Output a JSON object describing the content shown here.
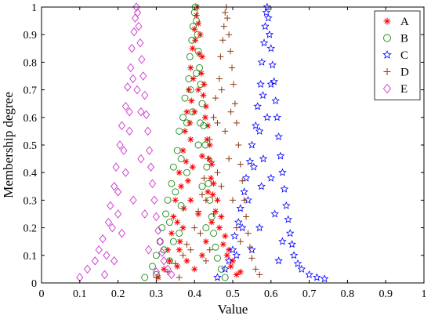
{
  "chart_data": {
    "type": "scatter",
    "title": "",
    "xlabel": "Value",
    "ylabel": "Membership degree",
    "xlim": [
      0,
      1
    ],
    "ylim": [
      0,
      1
    ],
    "xticks": [
      "0",
      "0.1",
      "0.2",
      "0.3",
      "0.4",
      "0.5",
      "0.6",
      "0.7",
      "0.8",
      "0.9",
      "1"
    ],
    "yticks": [
      "0",
      "0.1",
      "0.2",
      "0.3",
      "0.4",
      "0.5",
      "0.6",
      "0.7",
      "0.8",
      "0.9",
      "1"
    ],
    "grid": false,
    "legend_position": "top-right",
    "series": [
      {
        "name": "A",
        "marker": "asterisk",
        "color": "#ff0000",
        "points": [
          [
            0.305,
            0.02
          ],
          [
            0.32,
            0.05
          ],
          [
            0.33,
            0.12
          ],
          [
            0.335,
            0.08
          ],
          [
            0.34,
            0.18
          ],
          [
            0.345,
            0.24
          ],
          [
            0.35,
            0.3
          ],
          [
            0.355,
            0.22
          ],
          [
            0.36,
            0.4
          ],
          [
            0.362,
            0.15
          ],
          [
            0.365,
            0.35
          ],
          [
            0.37,
            0.48
          ],
          [
            0.372,
            0.27
          ],
          [
            0.375,
            0.55
          ],
          [
            0.378,
            0.44
          ],
          [
            0.38,
            0.62
          ],
          [
            0.383,
            0.37
          ],
          [
            0.385,
            0.7
          ],
          [
            0.388,
            0.58
          ],
          [
            0.39,
            0.78
          ],
          [
            0.392,
            0.66
          ],
          [
            0.395,
            0.85
          ],
          [
            0.397,
            0.74
          ],
          [
            0.4,
            0.92
          ],
          [
            0.402,
            0.88
          ],
          [
            0.405,
            0.97
          ],
          [
            0.407,
            1.0
          ],
          [
            0.41,
            0.94
          ],
          [
            0.412,
            0.83
          ],
          [
            0.415,
            0.9
          ],
          [
            0.418,
            0.76
          ],
          [
            0.42,
            0.82
          ],
          [
            0.423,
            0.68
          ],
          [
            0.425,
            0.72
          ],
          [
            0.428,
            0.6
          ],
          [
            0.43,
            0.64
          ],
          [
            0.433,
            0.52
          ],
          [
            0.435,
            0.57
          ],
          [
            0.438,
            0.45
          ],
          [
            0.44,
            0.5
          ],
          [
            0.443,
            0.38
          ],
          [
            0.445,
            0.43
          ],
          [
            0.448,
            0.32
          ],
          [
            0.45,
            0.36
          ],
          [
            0.455,
            0.26
          ],
          [
            0.46,
            0.3
          ],
          [
            0.465,
            0.2
          ],
          [
            0.47,
            0.24
          ],
          [
            0.475,
            0.14
          ],
          [
            0.48,
            0.17
          ],
          [
            0.485,
            0.1
          ],
          [
            0.49,
            0.12
          ],
          [
            0.495,
            0.06
          ],
          [
            0.5,
            0.08
          ],
          [
            0.51,
            0.03
          ],
          [
            0.52,
            0.04
          ],
          [
            0.36,
            0.12
          ],
          [
            0.37,
            0.2
          ],
          [
            0.39,
            0.3
          ],
          [
            0.41,
            0.25
          ],
          [
            0.43,
            0.15
          ],
          [
            0.38,
            0.08
          ],
          [
            0.4,
            0.05
          ],
          [
            0.42,
            0.1
          ],
          [
            0.355,
            0.06
          ],
          [
            0.445,
            0.22
          ],
          [
            0.39,
            0.52
          ],
          [
            0.42,
            0.46
          ],
          [
            0.4,
            0.62
          ],
          [
            0.41,
            0.7
          ],
          [
            0.395,
            0.42
          ],
          [
            0.435,
            0.33
          ]
        ]
      },
      {
        "name": "B",
        "marker": "circle",
        "color": "#1a8a1a",
        "points": [
          [
            0.27,
            0.02
          ],
          [
            0.29,
            0.06
          ],
          [
            0.3,
            0.1
          ],
          [
            0.31,
            0.15
          ],
          [
            0.315,
            0.2
          ],
          [
            0.32,
            0.12
          ],
          [
            0.325,
            0.25
          ],
          [
            0.33,
            0.3
          ],
          [
            0.335,
            0.22
          ],
          [
            0.34,
            0.36
          ],
          [
            0.345,
            0.42
          ],
          [
            0.35,
            0.33
          ],
          [
            0.355,
            0.48
          ],
          [
            0.36,
            0.55
          ],
          [
            0.365,
            0.45
          ],
          [
            0.37,
            0.6
          ],
          [
            0.375,
            0.67
          ],
          [
            0.38,
            0.58
          ],
          [
            0.385,
            0.74
          ],
          [
            0.388,
            0.82
          ],
          [
            0.39,
            0.7
          ],
          [
            0.393,
            0.88
          ],
          [
            0.396,
            0.93
          ],
          [
            0.4,
            0.98
          ],
          [
            0.402,
            1.0
          ],
          [
            0.405,
            0.95
          ],
          [
            0.408,
            0.9
          ],
          [
            0.41,
            0.84
          ],
          [
            0.413,
            0.78
          ],
          [
            0.416,
            0.72
          ],
          [
            0.42,
            0.65
          ],
          [
            0.424,
            0.57
          ],
          [
            0.428,
            0.5
          ],
          [
            0.432,
            0.42
          ],
          [
            0.436,
            0.36
          ],
          [
            0.44,
            0.3
          ],
          [
            0.445,
            0.24
          ],
          [
            0.45,
            0.18
          ],
          [
            0.455,
            0.13
          ],
          [
            0.46,
            0.09
          ],
          [
            0.47,
            0.05
          ],
          [
            0.48,
            0.02
          ],
          [
            0.345,
            0.15
          ],
          [
            0.365,
            0.28
          ],
          [
            0.38,
            0.4
          ],
          [
            0.41,
            0.5
          ],
          [
            0.42,
            0.35
          ],
          [
            0.43,
            0.2
          ],
          [
            0.3,
            0.03
          ],
          [
            0.335,
            0.08
          ],
          [
            0.395,
            0.62
          ],
          [
            0.405,
            0.76
          ],
          [
            0.415,
            0.58
          ],
          [
            0.36,
            0.18
          ]
        ]
      },
      {
        "name": "C",
        "marker": "star",
        "color": "#0000ff",
        "points": [
          [
            0.46,
            0.02
          ],
          [
            0.48,
            0.05
          ],
          [
            0.49,
            0.08
          ],
          [
            0.5,
            0.12
          ],
          [
            0.505,
            0.17
          ],
          [
            0.51,
            0.1
          ],
          [
            0.515,
            0.22
          ],
          [
            0.52,
            0.27
          ],
          [
            0.525,
            0.2
          ],
          [
            0.53,
            0.33
          ],
          [
            0.535,
            0.38
          ],
          [
            0.54,
            0.3
          ],
          [
            0.545,
            0.44
          ],
          [
            0.55,
            0.5
          ],
          [
            0.555,
            0.42
          ],
          [
            0.56,
            0.57
          ],
          [
            0.565,
            0.64
          ],
          [
            0.57,
            0.55
          ],
          [
            0.573,
            0.72
          ],
          [
            0.576,
            0.8
          ],
          [
            0.579,
            0.68
          ],
          [
            0.582,
            0.87
          ],
          [
            0.585,
            0.93
          ],
          [
            0.588,
            0.98
          ],
          [
            0.59,
            1.0
          ],
          [
            0.593,
            0.96
          ],
          [
            0.596,
            0.9
          ],
          [
            0.6,
            0.85
          ],
          [
            0.604,
            0.79
          ],
          [
            0.608,
            0.73
          ],
          [
            0.612,
            0.66
          ],
          [
            0.616,
            0.6
          ],
          [
            0.62,
            0.53
          ],
          [
            0.625,
            0.46
          ],
          [
            0.63,
            0.4
          ],
          [
            0.635,
            0.34
          ],
          [
            0.64,
            0.28
          ],
          [
            0.645,
            0.23
          ],
          [
            0.65,
            0.18
          ],
          [
            0.655,
            0.14
          ],
          [
            0.66,
            0.1
          ],
          [
            0.67,
            0.07
          ],
          [
            0.68,
            0.05
          ],
          [
            0.7,
            0.03
          ],
          [
            0.72,
            0.02
          ],
          [
            0.74,
            0.015
          ],
          [
            0.6,
            0.38
          ],
          [
            0.58,
            0.45
          ],
          [
            0.61,
            0.25
          ],
          [
            0.57,
            0.2
          ],
          [
            0.63,
            0.15
          ],
          [
            0.55,
            0.12
          ],
          [
            0.62,
            0.08
          ],
          [
            0.59,
            0.6
          ],
          [
            0.6,
            0.72
          ],
          [
            0.575,
            0.35
          ]
        ]
      },
      {
        "name": "D",
        "marker": "plus",
        "color": "#8b3a0f",
        "points": [
          [
            0.3,
            0.02
          ],
          [
            0.33,
            0.04
          ],
          [
            0.35,
            0.07
          ],
          [
            0.37,
            0.1
          ],
          [
            0.38,
            0.14
          ],
          [
            0.39,
            0.12
          ],
          [
            0.4,
            0.2
          ],
          [
            0.41,
            0.26
          ],
          [
            0.415,
            0.18
          ],
          [
            0.42,
            0.32
          ],
          [
            0.425,
            0.38
          ],
          [
            0.43,
            0.3
          ],
          [
            0.435,
            0.45
          ],
          [
            0.44,
            0.52
          ],
          [
            0.445,
            0.44
          ],
          [
            0.45,
            0.6
          ],
          [
            0.455,
            0.67
          ],
          [
            0.46,
            0.58
          ],
          [
            0.465,
            0.74
          ],
          [
            0.468,
            0.82
          ],
          [
            0.471,
            0.7
          ],
          [
            0.474,
            0.88
          ],
          [
            0.477,
            0.93
          ],
          [
            0.48,
            0.98
          ],
          [
            0.483,
            1.0
          ],
          [
            0.486,
            0.96
          ],
          [
            0.49,
            0.9
          ],
          [
            0.494,
            0.84
          ],
          [
            0.498,
            0.78
          ],
          [
            0.502,
            0.72
          ],
          [
            0.506,
            0.65
          ],
          [
            0.51,
            0.58
          ],
          [
            0.515,
            0.5
          ],
          [
            0.52,
            0.43
          ],
          [
            0.525,
            0.37
          ],
          [
            0.53,
            0.3
          ],
          [
            0.535,
            0.24
          ],
          [
            0.54,
            0.18
          ],
          [
            0.545,
            0.13
          ],
          [
            0.55,
            0.09
          ],
          [
            0.56,
            0.05
          ],
          [
            0.57,
            0.03
          ],
          [
            0.45,
            0.25
          ],
          [
            0.47,
            0.35
          ],
          [
            0.49,
            0.45
          ],
          [
            0.5,
            0.3
          ],
          [
            0.51,
            0.2
          ],
          [
            0.44,
            0.12
          ],
          [
            0.36,
            0.02
          ],
          [
            0.48,
            0.55
          ],
          [
            0.495,
            0.62
          ],
          [
            0.46,
            0.4
          ],
          [
            0.52,
            0.15
          ],
          [
            0.43,
            0.08
          ]
        ]
      },
      {
        "name": "E",
        "marker": "diamond",
        "color": "#cc33cc",
        "points": [
          [
            0.1,
            0.02
          ],
          [
            0.12,
            0.05
          ],
          [
            0.14,
            0.08
          ],
          [
            0.15,
            0.12
          ],
          [
            0.16,
            0.16
          ],
          [
            0.17,
            0.1
          ],
          [
            0.175,
            0.22
          ],
          [
            0.18,
            0.28
          ],
          [
            0.185,
            0.2
          ],
          [
            0.19,
            0.35
          ],
          [
            0.195,
            0.42
          ],
          [
            0.2,
            0.33
          ],
          [
            0.205,
            0.5
          ],
          [
            0.21,
            0.57
          ],
          [
            0.215,
            0.48
          ],
          [
            0.22,
            0.64
          ],
          [
            0.225,
            0.71
          ],
          [
            0.23,
            0.62
          ],
          [
            0.233,
            0.78
          ],
          [
            0.236,
            0.85
          ],
          [
            0.239,
            0.74
          ],
          [
            0.242,
            0.91
          ],
          [
            0.245,
            0.96
          ],
          [
            0.248,
            1.0
          ],
          [
            0.251,
            0.98
          ],
          [
            0.254,
            0.93
          ],
          [
            0.258,
            0.87
          ],
          [
            0.262,
            0.81
          ],
          [
            0.266,
            0.75
          ],
          [
            0.27,
            0.68
          ],
          [
            0.274,
            0.61
          ],
          [
            0.278,
            0.55
          ],
          [
            0.282,
            0.48
          ],
          [
            0.286,
            0.42
          ],
          [
            0.29,
            0.36
          ],
          [
            0.295,
            0.3
          ],
          [
            0.3,
            0.24
          ],
          [
            0.305,
            0.19
          ],
          [
            0.31,
            0.15
          ],
          [
            0.315,
            0.11
          ],
          [
            0.32,
            0.08
          ],
          [
            0.33,
            0.05
          ],
          [
            0.34,
            0.03
          ],
          [
            0.22,
            0.4
          ],
          [
            0.26,
            0.45
          ],
          [
            0.24,
            0.3
          ],
          [
            0.27,
            0.25
          ],
          [
            0.21,
            0.18
          ],
          [
            0.28,
            0.12
          ],
          [
            0.19,
            0.08
          ],
          [
            0.23,
            0.55
          ],
          [
            0.25,
            0.7
          ],
          [
            0.26,
            0.62
          ],
          [
            0.2,
            0.25
          ],
          [
            0.3,
            0.04
          ],
          [
            0.165,
            0.03
          ]
        ]
      }
    ]
  }
}
